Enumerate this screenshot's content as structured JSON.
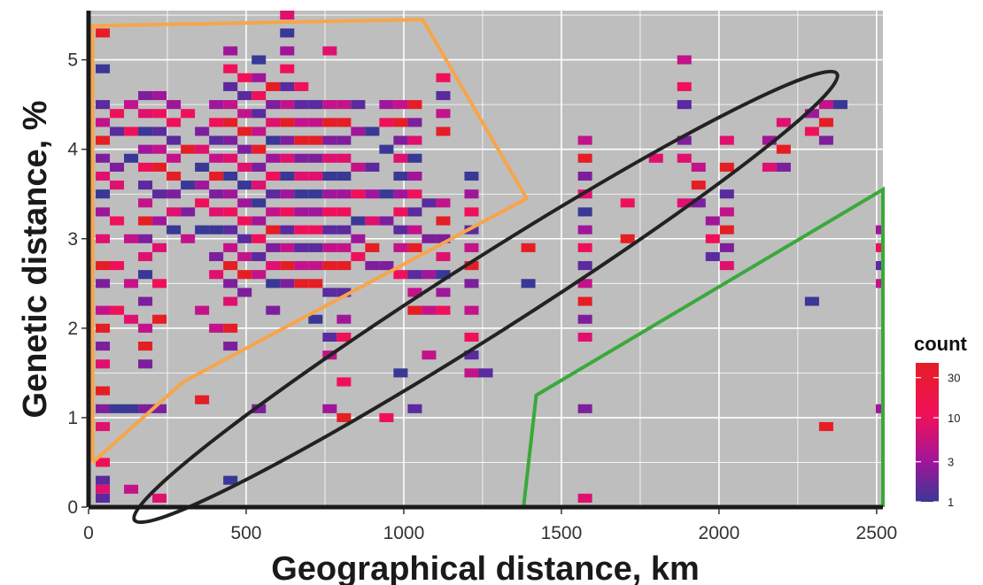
{
  "chart_data": {
    "type": "heatmap",
    "xlabel": "Geographical distance, km",
    "ylabel": "Genetic distance, %",
    "xlim": [
      0,
      2520
    ],
    "ylim": [
      0,
      5.55
    ],
    "x_ticks": [
      0,
      500,
      1000,
      1500,
      2000,
      2500
    ],
    "y_ticks": [
      0,
      1,
      2,
      3,
      4,
      5
    ],
    "x_tick_labels": [
      "0",
      "500",
      "1000",
      "1500",
      "2000",
      "2500"
    ],
    "y_tick_labels": [
      "0",
      "1",
      "2",
      "3",
      "4",
      "5"
    ],
    "grid": true,
    "panel_background": "#bebebe",
    "bin_width_km": 45,
    "bin_height_pct": 0.1,
    "legend": {
      "title": "count",
      "position": "right",
      "scale": "log",
      "range": [
        1,
        45
      ],
      "breaks": [
        1,
        3,
        10,
        30
      ],
      "break_labels": [
        "1",
        "3",
        "10",
        "30"
      ],
      "colors": [
        "#3a3896",
        "#a0169a",
        "#f0105a",
        "#e51e26"
      ]
    },
    "regions": [
      {
        "shape": "polygon",
        "color": "#f7a54a",
        "vertices": [
          [
            13,
            0.5
          ],
          [
            13,
            5.38
          ],
          [
            1060,
            5.45
          ],
          [
            1390,
            3.45
          ],
          [
            300,
            1.4
          ],
          [
            13,
            0.5
          ]
        ]
      },
      {
        "shape": "polygon",
        "color": "#3aa93a",
        "vertices": [
          [
            1380,
            0
          ],
          [
            1420,
            1.25
          ],
          [
            2520,
            3.55
          ],
          [
            2520,
            0
          ]
        ]
      },
      {
        "shape": "ellipse",
        "color": "#222222",
        "cx": 1260,
        "cy": 2.35,
        "rx": 1340,
        "ry": 0.33,
        "rotation_deg": -59
      }
    ],
    "columns": [
      {
        "x": 45,
        "y": [
          0.1,
          0.2,
          0.3,
          0.5,
          0.9,
          1.1,
          1.3,
          1.6,
          1.8,
          2.0,
          2.2,
          2.5,
          2.7,
          3.0,
          3.3,
          3.5,
          3.7,
          3.9,
          4.1,
          4.3,
          4.5,
          4.9,
          5.3
        ]
      },
      {
        "x": 90,
        "y": [
          1.1,
          2.2,
          2.7,
          3.2,
          3.6,
          3.8,
          4.2,
          4.4
        ]
      },
      {
        "x": 135,
        "y": [
          0.2,
          1.1,
          2.1,
          2.5,
          3.0,
          3.9,
          4.2,
          4.5
        ]
      },
      {
        "x": 180,
        "y": [
          1.1,
          1.6,
          1.8,
          2.0,
          2.3,
          2.6,
          2.8,
          3.0,
          3.2,
          3.4,
          3.6,
          3.8,
          4.0,
          4.2,
          4.4,
          4.6
        ]
      },
      {
        "x": 225,
        "y": [
          0.1,
          1.1,
          2.1,
          2.5,
          2.9,
          3.2,
          3.5,
          3.8,
          4.0,
          4.2,
          4.4,
          4.6
        ]
      },
      {
        "x": 270,
        "y": [
          3.1,
          3.3,
          3.5,
          3.7,
          3.9,
          4.1,
          4.3,
          4.5
        ]
      },
      {
        "x": 315,
        "y": [
          3.0,
          3.3,
          3.6,
          4.0,
          4.4
        ]
      },
      {
        "x": 360,
        "y": [
          1.2,
          2.2,
          3.1,
          3.4,
          3.6,
          3.8,
          4.0,
          4.2
        ]
      },
      {
        "x": 405,
        "y": [
          2.0,
          2.6,
          2.8,
          3.1,
          3.3,
          3.5,
          3.7,
          3.9,
          4.1,
          4.3,
          4.5
        ]
      },
      {
        "x": 450,
        "y": [
          0.3,
          1.8,
          2.0,
          2.3,
          2.5,
          2.7,
          2.9,
          3.1,
          3.3,
          3.5,
          3.7,
          3.9,
          4.1,
          4.3,
          4.5,
          4.7,
          4.9,
          5.1
        ]
      },
      {
        "x": 495,
        "y": [
          2.4,
          2.6,
          2.8,
          3.0,
          3.2,
          3.4,
          3.6,
          3.8,
          4.0,
          4.2,
          4.4,
          4.6,
          4.8
        ]
      },
      {
        "x": 540,
        "y": [
          1.1,
          2.6,
          2.8,
          3.0,
          3.2,
          3.4,
          3.6,
          3.8,
          4.0,
          4.2,
          4.4,
          4.6,
          4.8,
          5.0
        ]
      },
      {
        "x": 585,
        "y": [
          2.2,
          2.5,
          2.7,
          2.9,
          3.1,
          3.3,
          3.5,
          3.7,
          3.9,
          4.1,
          4.3,
          4.5,
          4.7
        ]
      },
      {
        "x": 630,
        "y": [
          2.5,
          2.7,
          2.9,
          3.1,
          3.3,
          3.5,
          3.7,
          3.9,
          4.1,
          4.3,
          4.5,
          4.7,
          4.9,
          5.1,
          5.3,
          5.5
        ]
      },
      {
        "x": 675,
        "y": [
          2.5,
          2.7,
          2.9,
          3.1,
          3.3,
          3.5,
          3.7,
          3.9,
          4.1,
          4.3,
          4.5,
          4.7
        ]
      },
      {
        "x": 720,
        "y": [
          2.1,
          2.5,
          2.7,
          2.9,
          3.1,
          3.3,
          3.5,
          3.7,
          3.9,
          4.1,
          4.3,
          4.5
        ]
      },
      {
        "x": 765,
        "y": [
          1.1,
          1.7,
          1.9,
          2.4,
          2.7,
          2.9,
          3.1,
          3.3,
          3.5,
          3.7,
          3.9,
          4.1,
          4.3,
          4.5,
          5.1
        ]
      },
      {
        "x": 810,
        "y": [
          1.0,
          1.4,
          1.9,
          2.1,
          2.4,
          2.7,
          2.9,
          3.1,
          3.3,
          3.5,
          3.7,
          3.9,
          4.1,
          4.3,
          4.5
        ]
      },
      {
        "x": 855,
        "y": [
          2.8,
          3.0,
          3.2,
          3.5,
          3.8,
          4.2,
          4.5
        ]
      },
      {
        "x": 900,
        "y": [
          2.7,
          2.9,
          3.2,
          3.5,
          3.8,
          4.2
        ]
      },
      {
        "x": 945,
        "y": [
          1.0,
          2.7,
          3.2,
          3.5,
          4.0,
          4.3,
          4.5
        ]
      },
      {
        "x": 990,
        "y": [
          1.5,
          2.6,
          2.9,
          3.1,
          3.3,
          3.5,
          3.7,
          3.9,
          4.1,
          4.3,
          4.5
        ]
      },
      {
        "x": 1035,
        "y": [
          1.1,
          2.2,
          2.4,
          2.6,
          2.9,
          3.1,
          3.3,
          3.5,
          3.7,
          3.9,
          4.1,
          4.3,
          4.5
        ]
      },
      {
        "x": 1080,
        "y": [
          1.7,
          2.2,
          2.6,
          3.0,
          3.4
        ]
      },
      {
        "x": 1125,
        "y": [
          2.2,
          2.4,
          2.6,
          2.8,
          3.0,
          3.2,
          3.4,
          4.2,
          4.4,
          4.6,
          4.8
        ]
      },
      {
        "x": 1215,
        "y": [
          1.5,
          1.7,
          1.9,
          2.2,
          2.5,
          2.7,
          2.9,
          3.1,
          3.3,
          3.5,
          3.7
        ]
      },
      {
        "x": 1260,
        "y": [
          1.5
        ]
      },
      {
        "x": 1395,
        "y": [
          2.5,
          2.9
        ]
      },
      {
        "x": 1575,
        "y": [
          0.1,
          1.1,
          1.9,
          2.1,
          2.3,
          2.5,
          2.7,
          2.9,
          3.1,
          3.3,
          3.5,
          3.7,
          3.9,
          4.1
        ]
      },
      {
        "x": 1710,
        "y": [
          3.0,
          3.4
        ]
      },
      {
        "x": 1800,
        "y": [
          3.9
        ]
      },
      {
        "x": 1890,
        "y": [
          3.4,
          3.9,
          4.1,
          4.5,
          4.7,
          5.0
        ]
      },
      {
        "x": 1935,
        "y": [
          3.4,
          3.6,
          3.8
        ]
      },
      {
        "x": 1980,
        "y": [
          2.8,
          3.0,
          3.2
        ]
      },
      {
        "x": 2025,
        "y": [
          2.7,
          2.9,
          3.1,
          3.3,
          3.5,
          3.8,
          4.1
        ]
      },
      {
        "x": 2160,
        "y": [
          3.8,
          4.1
        ]
      },
      {
        "x": 2205,
        "y": [
          3.8,
          4.0,
          4.3
        ]
      },
      {
        "x": 2295,
        "y": [
          2.3,
          4.2,
          4.4
        ]
      },
      {
        "x": 2340,
        "y": [
          0.9,
          4.1,
          4.3,
          4.5
        ]
      },
      {
        "x": 2385,
        "y": [
          4.5
        ]
      },
      {
        "x": 2520,
        "y": [
          1.1,
          2.5,
          2.7,
          2.9,
          3.1
        ]
      }
    ]
  }
}
